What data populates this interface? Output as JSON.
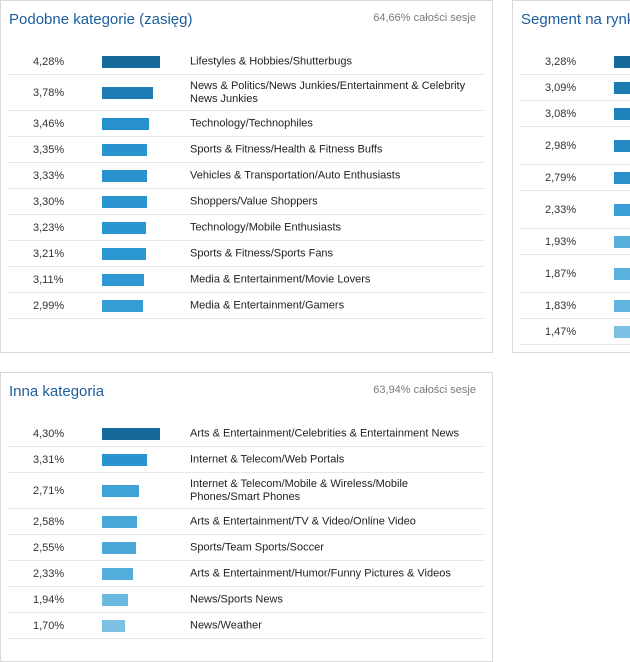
{
  "panels": {
    "similar": {
      "title": "Podobne kategorie (zasięg)",
      "meta": "64,66% całości sesje",
      "rows": [
        {
          "pct": "4,28%",
          "value": 4.28,
          "label": "Lifestyles & Hobbies/Shutterbugs",
          "color": "#166a9a"
        },
        {
          "pct": "3,78%",
          "value": 3.78,
          "label": "News & Politics/News Junkies/Entertainment & Celebrity News Junkies",
          "color": "#1c7db5"
        },
        {
          "pct": "3,46%",
          "value": 3.46,
          "label": "Technology/Technophiles",
          "color": "#2791cc"
        },
        {
          "pct": "3,35%",
          "value": 3.35,
          "label": "Sports & Fitness/Health & Fitness Buffs",
          "color": "#2893cd"
        },
        {
          "pct": "3,33%",
          "value": 3.33,
          "label": "Vehicles & Transportation/Auto Enthusiasts",
          "color": "#2893cd"
        },
        {
          "pct": "3,30%",
          "value": 3.3,
          "label": "Shoppers/Value Shoppers",
          "color": "#2994ce"
        },
        {
          "pct": "3,23%",
          "value": 3.23,
          "label": "Technology/Mobile Enthusiasts",
          "color": "#2a96cf"
        },
        {
          "pct": "3,21%",
          "value": 3.21,
          "label": "Sports & Fitness/Sports Fans",
          "color": "#2b97d0"
        },
        {
          "pct": "3,11%",
          "value": 3.11,
          "label": "Media & Entertainment/Movie Lovers",
          "color": "#2f9ad2"
        },
        {
          "pct": "2,99%",
          "value": 2.99,
          "label": "Media & Entertainment/Gamers",
          "color": "#349ed4"
        }
      ]
    },
    "market": {
      "title": "Segment na rynku",
      "rows": [
        {
          "pct": "3,28%",
          "value": 3.28,
          "color": "#166a9a"
        },
        {
          "pct": "3,09%",
          "value": 3.09,
          "color": "#1c7db5"
        },
        {
          "pct": "3,08%",
          "value": 3.08,
          "color": "#1f82bb"
        },
        {
          "pct": "2,98%",
          "value": 2.98,
          "color": "#2588c2"
        },
        {
          "pct": "2,79%",
          "value": 2.79,
          "color": "#2a90c9"
        },
        {
          "pct": "2,33%",
          "value": 2.33,
          "color": "#3a9fd4"
        },
        {
          "pct": "1,93%",
          "value": 1.93,
          "color": "#56aedb"
        },
        {
          "pct": "1,87%",
          "value": 1.87,
          "color": "#5bb1dd"
        },
        {
          "pct": "1,83%",
          "value": 1.83,
          "color": "#60b4de"
        },
        {
          "pct": "1,47%",
          "value": 1.47,
          "color": "#7cc1e4"
        }
      ]
    },
    "other": {
      "title": "Inna kategoria",
      "meta": "63,94% całości sesje",
      "rows": [
        {
          "pct": "4,30%",
          "value": 4.3,
          "label": "Arts & Entertainment/Celebrities & Entertainment News",
          "color": "#166a9a"
        },
        {
          "pct": "3,31%",
          "value": 3.31,
          "label": "Internet & Telecom/Web Portals",
          "color": "#2893cd"
        },
        {
          "pct": "2,71%",
          "value": 2.71,
          "label": "Internet & Telecom/Mobile & Wireless/Mobile Phones/Smart Phones",
          "color": "#40a3d6"
        },
        {
          "pct": "2,58%",
          "value": 2.58,
          "label": "Arts & Entertainment/TV & Video/Online Video",
          "color": "#47a7d8"
        },
        {
          "pct": "2,55%",
          "value": 2.55,
          "label": "Sports/Team Sports/Soccer",
          "color": "#49a8d8"
        },
        {
          "pct": "2,33%",
          "value": 2.33,
          "label": "Arts & Entertainment/Humor/Funny Pictures & Videos",
          "color": "#54aedb"
        },
        {
          "pct": "1,94%",
          "value": 1.94,
          "label": "News/Sports News",
          "color": "#6cb9e0"
        },
        {
          "pct": "1,70%",
          "value": 1.7,
          "label": "News/Weather",
          "color": "#7cc1e4"
        }
      ]
    }
  }
}
